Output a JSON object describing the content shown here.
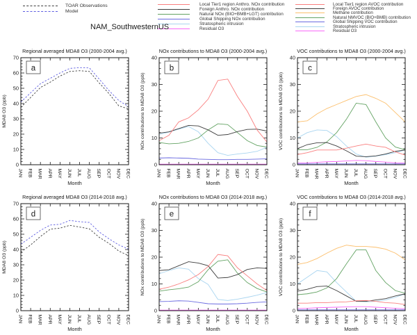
{
  "region_label": "NAM_SouthwesternUS",
  "months": [
    "JAN",
    "FEB",
    "MAR",
    "APR",
    "MAY",
    "JUN",
    "JUL",
    "AUG",
    "SEP",
    "OCT",
    "NOV",
    "DEC"
  ],
  "month_axis_label": "Month",
  "colors": {
    "obs_black": "#3c3c3c",
    "model_blue": "#5c5ce0",
    "red": "#f97e7e",
    "black": "#3c3c3c",
    "green": "#63a363",
    "blue": "#6a6ae0",
    "cyan": "#a9d5f0",
    "magenta": "#f869f8",
    "orange": "#fcbf6c"
  },
  "legends": {
    "obs_model": [
      {
        "label": "TOAR Observations",
        "color": "#3c3c3c",
        "style": "dashed"
      },
      {
        "label": "Model",
        "color": "#5c5ce0",
        "style": "dashed"
      }
    ],
    "nox": [
      {
        "label": "Local Tier1 region Anthro. NOx contribution",
        "color": "#f97e7e",
        "style": "solid"
      },
      {
        "label": "Foreign Anthro. NOx contribution",
        "color": "#3c3c3c",
        "style": "solid"
      },
      {
        "label": "Natural NOx (BIO+BMB+LGT) contribution",
        "color": "#63a363",
        "style": "solid"
      },
      {
        "label": "Global Shipping NOx contribution",
        "color": "#6a6ae0",
        "style": "solid"
      },
      {
        "label": "Stratospheric intrusion",
        "color": "#a9d5f0",
        "style": "solid"
      },
      {
        "label": "Residual O3",
        "color": "#f869f8",
        "style": "solid"
      }
    ],
    "voc": [
      {
        "label": "Local Tier1 region AVOC contribution",
        "color": "#f97e7e",
        "style": "solid"
      },
      {
        "label": "Foreign AVOC contribution",
        "color": "#3c3c3c",
        "style": "solid"
      },
      {
        "label": "Methane contribution",
        "color": "#fcbf6c",
        "style": "solid"
      },
      {
        "label": "Natural NMVOC (BIO+BMB) contribution",
        "color": "#63a363",
        "style": "solid"
      },
      {
        "label": "Global Shipping VOC contribution",
        "color": "#6a6ae0",
        "style": "solid"
      },
      {
        "label": "Stratospheric intrusion",
        "color": "#a9d5f0",
        "style": "solid"
      },
      {
        "label": "Residual O3",
        "color": "#f869f8",
        "style": "solid"
      }
    ]
  },
  "chart_data": [
    {
      "type": "line",
      "panel": "a",
      "title": "Regional averaged MDA8 O3 (2000-2004 avg.)",
      "xlabel": "Month",
      "ylabel": "MDA8 O3 (ppb)",
      "ylim": [
        0,
        70
      ],
      "ytick": 10,
      "grid": false,
      "series": [
        {
          "name": "TOAR Observations",
          "color": "#3c3c3c",
          "dash": true,
          "values": [
            37.5,
            44,
            50.5,
            54,
            58,
            61,
            61.5,
            61,
            53.5,
            46.5,
            38.5,
            36.5
          ]
        },
        {
          "name": "Model",
          "color": "#5c5ce0",
          "dash": true,
          "values": [
            41,
            47,
            53,
            56.5,
            60,
            63,
            63.5,
            63.3,
            56,
            48.5,
            42,
            38
          ]
        }
      ]
    },
    {
      "type": "line",
      "panel": "b",
      "title": "NOx contributions to MDA8 O3 (2000-2004 avg.)",
      "xlabel": "Month",
      "ylabel": "NOx contributions to MDA8 O3 (ppb)",
      "ylim": [
        0,
        40
      ],
      "ytick": 10,
      "grid": false,
      "series": [
        {
          "name": "Local Tier1 region Anthro. NOx contribution",
          "color": "#f97e7e",
          "dash": false,
          "values": [
            9,
            11,
            16,
            17.5,
            20.5,
            24.5,
            31.5,
            32,
            25.5,
            20,
            13,
            8.5
          ]
        },
        {
          "name": "Foreign Anthro. NOx contribution",
          "color": "#3c3c3c",
          "dash": false,
          "values": [
            11.8,
            12.3,
            13.5,
            14.7,
            14.5,
            13,
            11,
            11.3,
            12.4,
            13.2,
            13.3,
            12.6
          ]
        },
        {
          "name": "Natural NOx (BIO+BMB+LGT) contribution",
          "color": "#63a363",
          "dash": false,
          "values": [
            8.3,
            7.8,
            8,
            8.7,
            10,
            13,
            15.3,
            15,
            12,
            9,
            7.2,
            6.6
          ]
        },
        {
          "name": "Global Shipping NOx contribution",
          "color": "#6a6ae0",
          "dash": false,
          "values": [
            2.5,
            2.6,
            2.5,
            2.4,
            2.1,
            2,
            1.9,
            1.9,
            2,
            2,
            2.1,
            2.2
          ]
        },
        {
          "name": "Stratospheric intrusion",
          "color": "#a9d5f0",
          "dash": false,
          "values": [
            11.3,
            12.2,
            13.3,
            14.3,
            12.3,
            8,
            4.5,
            3.5,
            4,
            4.4,
            5,
            6.5
          ]
        },
        {
          "name": "Residual O3",
          "color": "#f869f8",
          "dash": false,
          "values": [
            0.2,
            0.2,
            0.2,
            0.2,
            0.2,
            0.2,
            0.2,
            0.2,
            0.2,
            0.2,
            0.2,
            0.2
          ]
        }
      ]
    },
    {
      "type": "line",
      "panel": "c",
      "title": "VOC contributions to MDA8 O3 (2000-2004 avg.)",
      "xlabel": "Month",
      "ylabel": "VOC contributions to MDA8 O3 (ppb)",
      "ylim": [
        0,
        40
      ],
      "ytick": 10,
      "grid": false,
      "series": [
        {
          "name": "Local Tier1 region AVOC contribution",
          "color": "#f97e7e",
          "dash": false,
          "values": [
            3.8,
            4.5,
            5.5,
            5.5,
            5.5,
            6.2,
            7,
            7.7,
            7,
            6.5,
            4.8,
            3.6
          ]
        },
        {
          "name": "Foreign AVOC contribution",
          "color": "#3c3c3c",
          "dash": false,
          "values": [
            6,
            7.5,
            8.2,
            8.3,
            7,
            5.2,
            3.2,
            3,
            3.3,
            4,
            5,
            5.5
          ]
        },
        {
          "name": "Methane contribution",
          "color": "#fcbf6c",
          "dash": false,
          "values": [
            16,
            16.4,
            19,
            21,
            22.5,
            24,
            25.5,
            26.2,
            24.8,
            23,
            19.5,
            16
          ]
        },
        {
          "name": "Natural NMVOC (BIO+BMB) contribution",
          "color": "#63a363",
          "dash": false,
          "values": [
            5.6,
            5.6,
            6.5,
            8.5,
            12,
            17,
            23,
            22.5,
            16,
            10,
            6.6,
            5.6
          ]
        },
        {
          "name": "Global Shipping VOC contribution",
          "color": "#6a6ae0",
          "dash": false,
          "values": [
            0.3,
            0.3,
            0.3,
            0.3,
            0.3,
            0.3,
            0.3,
            0.3,
            0.3,
            0.3,
            0.3,
            0.3
          ]
        },
        {
          "name": "Stratospheric intrusion",
          "color": "#a9d5f0",
          "dash": false,
          "values": [
            10,
            12,
            13,
            12.8,
            10.5,
            7,
            4,
            2.8,
            3.2,
            3.8,
            4.5,
            5.5
          ]
        },
        {
          "name": "Residual O3",
          "color": "#f869f8",
          "dash": false,
          "values": [
            0.6,
            0.7,
            0.9,
            1.1,
            1.2,
            1.4,
            1.6,
            1.5,
            1.2,
            1,
            0.7,
            0.6
          ]
        }
      ]
    },
    {
      "type": "line",
      "panel": "d",
      "title": "Regional averaged MDA8 O3 (2014-2018 avg.)",
      "xlabel": "Month",
      "ylabel": "MDA8 O3 (ppb)",
      "ylim": [
        0,
        70
      ],
      "ytick": 10,
      "grid": false,
      "series": [
        {
          "name": "TOAR Observations",
          "color": "#3c3c3c",
          "dash": true,
          "values": [
            38.3,
            43,
            48.5,
            53.3,
            54,
            55.8,
            54.7,
            53.5,
            48,
            44,
            39,
            36
          ]
        },
        {
          "name": "Model",
          "color": "#5c5ce0",
          "dash": true,
          "values": [
            43.5,
            48,
            52.5,
            56,
            56.5,
            59,
            58.2,
            57.7,
            51.5,
            47,
            43,
            40.3
          ]
        }
      ]
    },
    {
      "type": "line",
      "panel": "e",
      "title": "NOx contributions to MDA8 O3 (2014-2018 avg.)",
      "xlabel": "Month",
      "ylabel": "NOx contributions to MDA8 O3 (ppb)",
      "ylim": [
        0,
        40
      ],
      "ytick": 10,
      "grid": false,
      "series": [
        {
          "name": "Local Tier1 region Anthro. NOx contribution",
          "color": "#f97e7e",
          "dash": false,
          "values": [
            8,
            8.8,
            10,
            11.5,
            13.5,
            16.5,
            21,
            20.5,
            16,
            13,
            10,
            7.5
          ]
        },
        {
          "name": "Foreign Anthro. NOx contribution",
          "color": "#3c3c3c",
          "dash": false,
          "values": [
            15,
            15.3,
            16.8,
            18.3,
            17.8,
            16.8,
            12.2,
            12.4,
            13.5,
            15.4,
            16,
            15.8
          ]
        },
        {
          "name": "Natural NOx (BIO+BMB+LGT) contribution",
          "color": "#63a363",
          "dash": false,
          "values": [
            7.3,
            7.8,
            8.2,
            8.8,
            10.8,
            15.3,
            18.5,
            19,
            14,
            10.5,
            8.3,
            7
          ]
        },
        {
          "name": "Global Shipping NOx contribution",
          "color": "#6a6ae0",
          "dash": false,
          "values": [
            3.4,
            3.5,
            3.7,
            3.6,
            3.1,
            2.6,
            2.5,
            2.5,
            2.6,
            2.8,
            3.1,
            3.3
          ]
        },
        {
          "name": "Stratospheric intrusion",
          "color": "#a9d5f0",
          "dash": false,
          "values": [
            13.8,
            15,
            16,
            15.5,
            12,
            9.8,
            4.2,
            3.8,
            4.3,
            5,
            5.8,
            6.8
          ]
        },
        {
          "name": "Residual O3",
          "color": "#f869f8",
          "dash": false,
          "values": [
            0.2,
            0.2,
            0.2,
            0.2,
            0.2,
            0.2,
            0.2,
            0.2,
            0.2,
            0.2,
            0.2,
            0.2
          ]
        }
      ]
    },
    {
      "type": "line",
      "panel": "f",
      "title": "VOC contributions to MDA8 O3 (2014-2018 avg.)",
      "xlabel": "Month",
      "ylabel": "VOC contributions to MDA8 O3 (ppb)",
      "ylim": [
        0,
        40
      ],
      "ytick": 10,
      "grid": false,
      "series": [
        {
          "name": "Local Tier1 region AVOC contribution",
          "color": "#f97e7e",
          "dash": false,
          "values": [
            2.8,
            2.8,
            3,
            3,
            3.2,
            3.3,
            3.7,
            3.8,
            3.5,
            3,
            2.8,
            2.3
          ]
        },
        {
          "name": "Foreign AVOC contribution",
          "color": "#3c3c3c",
          "dash": false,
          "values": [
            7.3,
            8,
            9,
            9.2,
            7.5,
            5.5,
            3.5,
            3.5,
            4,
            4.5,
            5.5,
            6.3
          ]
        },
        {
          "name": "Methane contribution",
          "color": "#fcbf6c",
          "dash": false,
          "values": [
            17.3,
            18,
            19.5,
            21.5,
            23.3,
            24.5,
            24,
            24,
            23.7,
            23,
            21.5,
            19
          ]
        },
        {
          "name": "Natural NMVOC (BIO+BMB) contribution",
          "color": "#63a363",
          "dash": false,
          "values": [
            6,
            6.3,
            7,
            8.5,
            12,
            17.5,
            22.7,
            22.7,
            15,
            10.5,
            7.5,
            6.5
          ]
        },
        {
          "name": "Global Shipping VOC contribution",
          "color": "#6a6ae0",
          "dash": false,
          "values": [
            0.3,
            0.3,
            0.3,
            0.3,
            0.3,
            0.3,
            0.3,
            0.3,
            0.3,
            0.3,
            0.3,
            0.3
          ]
        },
        {
          "name": "Stratospheric intrusion",
          "color": "#a9d5f0",
          "dash": false,
          "values": [
            10,
            12.5,
            15,
            14.5,
            10.5,
            7,
            3.5,
            3.3,
            3.5,
            4,
            5,
            6.3
          ]
        },
        {
          "name": "Residual O3",
          "color": "#f869f8",
          "dash": false,
          "values": [
            0.8,
            0.9,
            1.1,
            1.2,
            1.3,
            1.4,
            1.5,
            1.5,
            1.3,
            1.1,
            0.9,
            0.7
          ]
        }
      ]
    }
  ]
}
